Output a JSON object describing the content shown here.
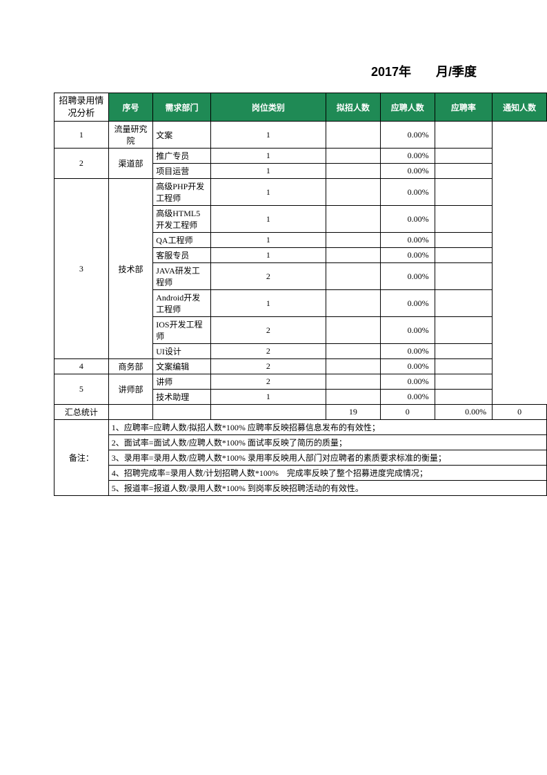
{
  "title": "2017年　　月/季度",
  "section_label_main": "招聘录用情\n况分析",
  "section_label_summary": "汇总统计",
  "section_label_notes": "备注：",
  "headers": {
    "seq": "序号",
    "dept": "需求部门",
    "pos": "岗位类别",
    "plan": "拟招人数",
    "apply": "应聘人数",
    "rate": "应聘率",
    "notify": "通知人数"
  },
  "rows": [
    {
      "seq": "1",
      "dept": "流量研究院",
      "positions": [
        {
          "pos": "文案",
          "plan": "1",
          "apply": "",
          "rate": "0.00%",
          "notify": ""
        }
      ]
    },
    {
      "seq": "2",
      "dept": "渠道部",
      "positions": [
        {
          "pos": "推广专员",
          "plan": "1",
          "apply": "",
          "rate": "0.00%",
          "notify": ""
        },
        {
          "pos": "项目运营",
          "plan": "1",
          "apply": "",
          "rate": "0.00%",
          "notify": ""
        }
      ]
    },
    {
      "seq": "3",
      "dept": "技术部",
      "positions": [
        {
          "pos": "高级PHP开发工程师",
          "plan": "1",
          "apply": "",
          "rate": "0.00%",
          "notify": ""
        },
        {
          "pos": "高级HTML5开发工程师",
          "plan": "1",
          "apply": "",
          "rate": "0.00%",
          "notify": ""
        },
        {
          "pos": "QA工程师",
          "plan": "1",
          "apply": "",
          "rate": "0.00%",
          "notify": ""
        },
        {
          "pos": "客服专员",
          "plan": "1",
          "apply": "",
          "rate": "0.00%",
          "notify": ""
        },
        {
          "pos": "JAVA研发工程师",
          "plan": "2",
          "apply": "",
          "rate": "0.00%",
          "notify": ""
        },
        {
          "pos": "Android开发工程师",
          "plan": "1",
          "apply": "",
          "rate": "0.00%",
          "notify": ""
        },
        {
          "pos": "IOS开发工程师",
          "plan": "2",
          "apply": "",
          "rate": "0.00%",
          "notify": ""
        },
        {
          "pos": "UI设计",
          "plan": "2",
          "apply": "",
          "rate": "0.00%",
          "notify": ""
        }
      ]
    },
    {
      "seq": "4",
      "dept": "商务部",
      "positions": [
        {
          "pos": "文案编辑",
          "plan": "2",
          "apply": "",
          "rate": "0.00%",
          "notify": ""
        }
      ]
    },
    {
      "seq": "5",
      "dept": "讲师部",
      "positions": [
        {
          "pos": "讲师",
          "plan": "2",
          "apply": "",
          "rate": "0.00%",
          "notify": ""
        },
        {
          "pos": "技术助理",
          "plan": "1",
          "apply": "",
          "rate": "0.00%",
          "notify": ""
        }
      ]
    }
  ],
  "summary": {
    "plan": "19",
    "apply": "0",
    "rate": "0.00%",
    "notify": "0"
  },
  "notes": [
    "1、应聘率=应聘人数/拟招人数*100%  应聘率反映招募信息发布的有效性；",
    "2、面试率=面试人数/应聘人数*100%  面试率反映了简历的质量；",
    "3、录用率=录用人数/应聘人数*100%  录用率反映用人部门对应聘者的素质要求标准的衡量；",
    "4、招聘完成率=录用人数/计划招聘人数*100%　完成率反映了整个招募进度完成情况；",
    "5、报道率=报道人数/录用人数*100%  到岗率反映招聘活动的有效性。"
  ],
  "colors": {
    "header_bg": "#1f8a55",
    "header_fg": "#ffffff",
    "border": "#000000"
  }
}
